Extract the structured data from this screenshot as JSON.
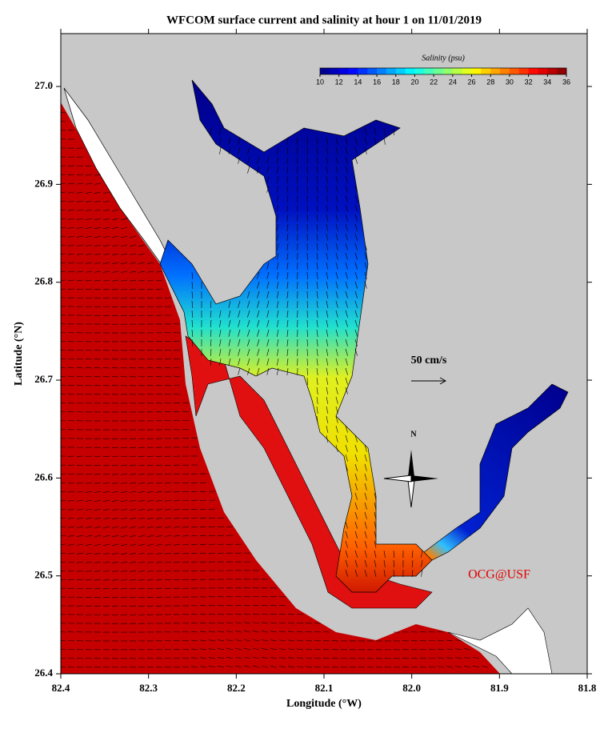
{
  "chart_data": {
    "type": "map",
    "title": "WFCOM surface current and salinity at hour 1 on 11/01/2019",
    "x_label": "Longitude (°W)",
    "y_label": "Latitude (°N)",
    "xlim": [
      82.4,
      81.8
    ],
    "ylim": [
      26.4,
      27.054
    ],
    "xticks": [
      82.4,
      82.3,
      82.2,
      82.1,
      {
        "value": 82,
        "label": "82.0"
      },
      81.9,
      81.8
    ],
    "yticks": [
      26.4,
      26.5,
      26.6,
      26.7,
      26.8,
      26.9,
      {
        "value": 27,
        "label": "27.0"
      }
    ],
    "colorbar": {
      "label": "Salinity (psu)",
      "lim": [
        10,
        36
      ],
      "ticks": [
        10,
        12,
        14,
        16,
        18,
        20,
        22,
        24,
        26,
        28,
        30,
        32,
        34,
        36
      ]
    },
    "scale_label": "50 cm/s",
    "compass_label": "N",
    "credit": "OCG@USF"
  }
}
